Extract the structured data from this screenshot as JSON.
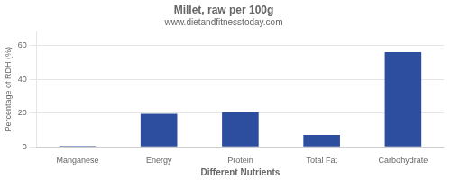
{
  "chart_data": {
    "type": "bar",
    "title": "Millet, raw per 100g",
    "subtitle": "www.dietandfitnesstoday.com",
    "xlabel": "Different Nutrients",
    "ylabel": "Percentage of RDH (%)",
    "categories": [
      "Manganese",
      "Energy",
      "Protein",
      "Total Fat",
      "Carbohydrate"
    ],
    "values": [
      0.5,
      19.5,
      20.5,
      7.0,
      56.0
    ],
    "color": "#2d4d9e",
    "ylim": [
      0,
      68
    ],
    "yticks": [
      0,
      20,
      40,
      60
    ],
    "grid": true
  }
}
